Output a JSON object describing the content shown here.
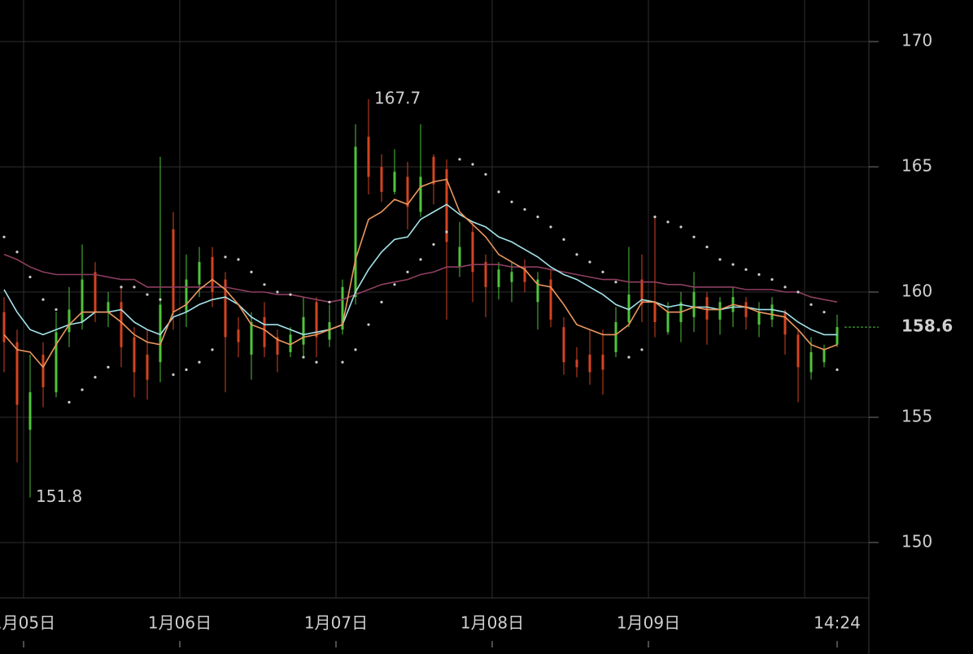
{
  "chart_data": {
    "type": "candlestick",
    "up_color": "#4fc43a",
    "down_color": "#d4431f",
    "x": [
      -3,
      -1,
      1,
      3,
      5,
      7,
      9,
      11,
      13,
      15,
      17,
      19,
      21,
      23,
      25,
      27,
      29,
      31,
      33,
      35,
      37,
      39,
      41,
      43,
      45,
      47,
      49,
      51,
      53,
      55,
      57,
      59,
      61,
      63,
      65,
      67,
      69,
      71,
      73,
      75,
      77,
      79,
      81,
      83,
      85,
      87,
      89,
      91,
      93,
      95,
      97,
      99,
      101,
      103,
      105,
      107,
      109,
      111,
      113,
      115,
      117,
      119,
      121,
      123,
      125
    ],
    "open": [
      159.2,
      158.0,
      154.5,
      157.5,
      156.0,
      158.4,
      158.8,
      160.8,
      159.2,
      159.6,
      158.2,
      157.5,
      157.2,
      162.5,
      159.2,
      160.3,
      161.4,
      160.5,
      158.5,
      157.5,
      159.0,
      158.2,
      157.6,
      157.9,
      159.6,
      158.1,
      158.5,
      159.8,
      166.2,
      165.0,
      164.0,
      164.6,
      163.2,
      165.4,
      164.9,
      161.0,
      162.4,
      161.2,
      160.2,
      160.4,
      161.0,
      159.6,
      160.5,
      158.6,
      157.3,
      157.5,
      157.5,
      157.6,
      158.8,
      160.5,
      159.6,
      158.4,
      158.8,
      159.0,
      159.8,
      158.9,
      159.2,
      159.6,
      158.7,
      158.9,
      159.2,
      158.3,
      156.8,
      157.2,
      157.9
    ],
    "high": [
      159.8,
      158.5,
      157.5,
      158.0,
      159.2,
      160.2,
      161.9,
      161.2,
      160.0,
      160.2,
      158.6,
      158.5,
      165.4,
      163.2,
      161.5,
      161.8,
      161.8,
      160.8,
      159.0,
      159.2,
      159.6,
      158.5,
      158.6,
      159.8,
      159.8,
      159.5,
      160.5,
      166.7,
      167.7,
      165.5,
      165.7,
      165.2,
      166.7,
      165.5,
      165.3,
      162.8,
      162.8,
      161.5,
      161.2,
      161.2,
      161.3,
      160.8,
      160.9,
      159.0,
      157.8,
      158.5,
      158.5,
      159.4,
      161.8,
      161.5,
      163.0,
      159.6,
      160.0,
      160.8,
      160.0,
      159.8,
      160.2,
      159.8,
      159.6,
      159.8,
      159.3,
      158.5,
      158.2,
      157.9,
      159.1
    ],
    "low": [
      156.8,
      153.2,
      151.8,
      155.4,
      155.8,
      157.8,
      158.5,
      158.8,
      158.6,
      157.0,
      155.8,
      155.7,
      156.4,
      158.5,
      158.6,
      159.8,
      159.4,
      156.0,
      157.4,
      156.5,
      157.4,
      156.8,
      157.4,
      157.4,
      157.4,
      157.8,
      158.3,
      159.5,
      163.9,
      163.6,
      163.9,
      162.5,
      163.0,
      163.5,
      158.9,
      160.6,
      159.6,
      159.0,
      159.7,
      159.6,
      160.0,
      158.5,
      158.6,
      156.7,
      156.6,
      156.3,
      155.9,
      157.4,
      158.6,
      158.8,
      158.2,
      158.3,
      158.0,
      158.4,
      157.9,
      158.3,
      158.6,
      158.5,
      158.2,
      158.6,
      157.5,
      155.6,
      156.5,
      157.0,
      157.8
    ],
    "close": [
      158.0,
      155.5,
      156.0,
      156.2,
      158.4,
      159.3,
      160.5,
      159.2,
      159.6,
      157.8,
      156.8,
      156.5,
      159.5,
      159.2,
      160.5,
      161.2,
      160.0,
      158.2,
      158.0,
      158.8,
      157.8,
      157.5,
      158.3,
      159.0,
      158.2,
      158.8,
      160.2,
      165.8,
      164.6,
      164.0,
      164.8,
      163.4,
      164.6,
      164.3,
      162.0,
      161.8,
      160.8,
      160.2,
      160.9,
      160.8,
      160.4,
      160.5,
      158.9,
      157.2,
      157.0,
      156.8,
      156.9,
      158.8,
      159.9,
      159.5,
      158.8,
      159.2,
      159.6,
      160.0,
      158.9,
      159.6,
      159.8,
      159.0,
      159.2,
      159.5,
      158.3,
      157.0,
      157.6,
      157.7,
      158.6
    ],
    "series": [
      {
        "color": "#8e3e60",
        "style": "line",
        "values": [
          161.5,
          161.3,
          161.0,
          160.8,
          160.7,
          160.7,
          160.7,
          160.7,
          160.6,
          160.5,
          160.5,
          160.2,
          160.2,
          160.2,
          160.2,
          160.2,
          160.2,
          160.2,
          160.1,
          160.0,
          160.0,
          159.9,
          159.9,
          159.8,
          159.7,
          159.6,
          159.7,
          159.9,
          160.1,
          160.3,
          160.4,
          160.5,
          160.7,
          160.8,
          161.0,
          161.0,
          161.1,
          161.1,
          161.1,
          161.0,
          161.0,
          161.0,
          160.9,
          160.8,
          160.7,
          160.6,
          160.5,
          160.5,
          160.4,
          160.4,
          160.4,
          160.3,
          160.3,
          160.2,
          160.2,
          160.2,
          160.2,
          160.1,
          160.1,
          160.1,
          160.0,
          160.0,
          159.8,
          159.7,
          159.6
        ]
      },
      {
        "color": "#a3e4ea",
        "style": "line",
        "values": [
          160.1,
          159.2,
          158.5,
          158.3,
          158.5,
          158.7,
          158.8,
          159.2,
          159.2,
          159.3,
          158.8,
          158.5,
          158.3,
          159.0,
          159.2,
          159.5,
          159.7,
          159.8,
          159.5,
          159.0,
          158.7,
          158.7,
          158.5,
          158.3,
          158.4,
          158.5,
          158.7,
          160.0,
          160.9,
          161.6,
          162.1,
          162.2,
          162.9,
          163.2,
          163.5,
          163.1,
          162.8,
          162.6,
          162.2,
          162.0,
          161.7,
          161.4,
          161.0,
          160.7,
          160.5,
          160.2,
          159.9,
          159.5,
          159.3,
          159.7,
          159.6,
          159.4,
          159.5,
          159.4,
          159.4,
          159.3,
          159.4,
          159.4,
          159.3,
          159.3,
          159.2,
          158.8,
          158.5,
          158.3,
          158.3
        ]
      },
      {
        "color": "#eb975e",
        "style": "line",
        "values": [
          158.3,
          157.7,
          157.6,
          157.0,
          157.9,
          158.7,
          159.2,
          159.2,
          159.2,
          158.8,
          158.3,
          158.0,
          157.9,
          159.2,
          159.5,
          160.1,
          160.5,
          160.1,
          159.5,
          158.7,
          158.5,
          158.1,
          157.9,
          158.2,
          158.3,
          158.5,
          158.7,
          161.3,
          162.9,
          163.2,
          163.7,
          163.5,
          164.2,
          164.4,
          164.5,
          163.2,
          162.7,
          162.2,
          161.5,
          161.2,
          160.9,
          160.3,
          160.2,
          159.5,
          158.7,
          158.5,
          158.3,
          158.3,
          158.7,
          159.6,
          159.6,
          159.2,
          159.2,
          159.4,
          159.3,
          159.3,
          159.5,
          159.4,
          159.2,
          159.1,
          159.0,
          158.5,
          157.9,
          157.7,
          157.9
        ]
      },
      {
        "color": "#cfcfcf",
        "style": "dots",
        "values": [
          162.2,
          161.6,
          160.6,
          159.7,
          159.3,
          155.6,
          156.1,
          156.6,
          157.0,
          160.2,
          160.2,
          159.9,
          159.7,
          156.7,
          156.9,
          157.2,
          157.7,
          161.4,
          161.3,
          160.8,
          160.3,
          160.0,
          159.9,
          157.4,
          157.2,
          159.6,
          157.2,
          157.7,
          158.7,
          159.6,
          160.3,
          160.8,
          161.3,
          161.9,
          162.4,
          165.3,
          165.1,
          164.7,
          164.0,
          163.6,
          163.3,
          163.0,
          162.6,
          162.1,
          161.5,
          161.2,
          160.8,
          160.4,
          157.4,
          157.7,
          163.0,
          162.8,
          162.6,
          162.2,
          161.8,
          161.3,
          161.1,
          160.9,
          160.7,
          160.5,
          160.2,
          160.0,
          159.5,
          159.2,
          156.9
        ]
      }
    ],
    "annotations": [
      {
        "x": 53,
        "y": 167.7
      },
      {
        "x": 1,
        "y": 151.8
      }
    ],
    "last_price": 158.6,
    "last_price_color": "#4fc43a",
    "xlim": [
      -3.625,
      129.875
    ],
    "ylim": [
      147.79,
      171.66
    ],
    "yticks": [
      150,
      155,
      160,
      165,
      170
    ],
    "xticks": [
      {
        "value": 0,
        "label": "1月05日"
      },
      {
        "value": 24,
        "label": "1月06日"
      },
      {
        "value": 48,
        "label": "1月07日"
      },
      {
        "value": 72,
        "label": "1月08日"
      },
      {
        "value": 96,
        "label": "1月09日"
      }
    ],
    "xgrid": [
      120
    ],
    "last_time": {
      "value": 125,
      "label": "14:24"
    },
    "grid": true
  }
}
